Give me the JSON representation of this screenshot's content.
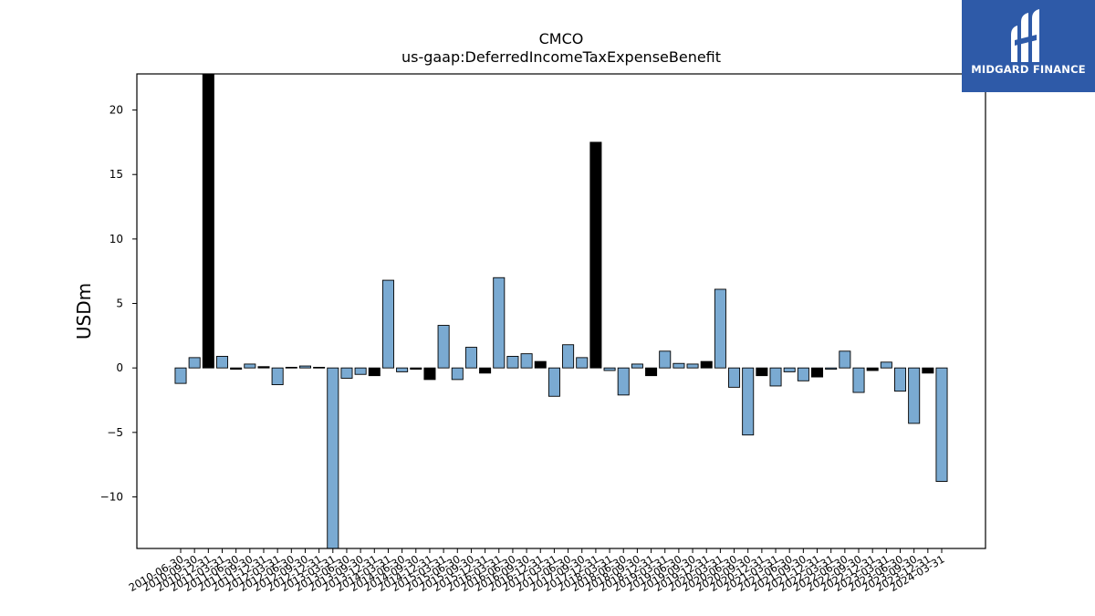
{
  "chart_data": {
    "type": "bar",
    "title": "CMCO",
    "subtitle": "us-gaap:DeferredIncomeTaxExpenseBenefit",
    "ylabel": "USDm",
    "xlabel": "",
    "ylim": [
      -14,
      22.8
    ],
    "yticks": [
      -10,
      -5,
      0,
      5,
      10,
      15,
      20
    ],
    "ytick_labels": [
      "−10",
      "−5",
      "0",
      "5",
      "10",
      "15",
      "20"
    ],
    "grid": false,
    "colors": {
      "normal": "#7aaad2",
      "highlight": "#000000",
      "edge": "#000000"
    },
    "bars": [
      {
        "x": "2010-06-30",
        "v": -1.2,
        "h": false
      },
      {
        "x": "2010-09-30",
        "v": 0.8,
        "h": false
      },
      {
        "x": "2010-12-31",
        "v": 22.8,
        "h": true
      },
      {
        "x": "2011-03-31",
        "v": 0.9,
        "h": false
      },
      {
        "x": "2011-06-30",
        "v": -0.1,
        "h": true
      },
      {
        "x": "2011-09-30",
        "v": 0.3,
        "h": false
      },
      {
        "x": "2011-12-31",
        "v": 0.1,
        "h": true
      },
      {
        "x": "2012-03-31",
        "v": -1.3,
        "h": false
      },
      {
        "x": "2012-06-30",
        "v": 0.05,
        "h": false
      },
      {
        "x": "2012-09-30",
        "v": 0.15,
        "h": false
      },
      {
        "x": "2012-12-31",
        "v": 0.05,
        "h": true
      },
      {
        "x": "2013-03-31",
        "v": -14.0,
        "h": false
      },
      {
        "x": "2013-06-30",
        "v": -0.8,
        "h": false
      },
      {
        "x": "2013-09-30",
        "v": -0.5,
        "h": false
      },
      {
        "x": "2013-12-31",
        "v": -0.6,
        "h": true
      },
      {
        "x": "2014-03-31",
        "v": 6.8,
        "h": false
      },
      {
        "x": "2014-06-30",
        "v": -0.3,
        "h": false
      },
      {
        "x": "2014-09-30",
        "v": -0.1,
        "h": true
      },
      {
        "x": "2014-12-31",
        "v": -0.9,
        "h": true
      },
      {
        "x": "2015-03-31",
        "v": 3.3,
        "h": false
      },
      {
        "x": "2015-06-30",
        "v": -0.9,
        "h": false
      },
      {
        "x": "2015-09-30",
        "v": 1.6,
        "h": false
      },
      {
        "x": "2015-12-31",
        "v": -0.4,
        "h": true
      },
      {
        "x": "2016-03-31",
        "v": 7.0,
        "h": false
      },
      {
        "x": "2016-06-30",
        "v": 0.9,
        "h": false
      },
      {
        "x": "2016-09-30",
        "v": 1.1,
        "h": false
      },
      {
        "x": "2016-12-31",
        "v": 0.5,
        "h": true
      },
      {
        "x": "2017-03-31",
        "v": -2.2,
        "h": false
      },
      {
        "x": "2017-06-30",
        "v": 1.8,
        "h": false
      },
      {
        "x": "2017-09-30",
        "v": 0.8,
        "h": false
      },
      {
        "x": "2017-12-31",
        "v": 17.5,
        "h": true
      },
      {
        "x": "2018-03-31",
        "v": -0.2,
        "h": false
      },
      {
        "x": "2018-06-30",
        "v": -2.1,
        "h": false
      },
      {
        "x": "2018-09-30",
        "v": 0.3,
        "h": false
      },
      {
        "x": "2018-12-31",
        "v": -0.6,
        "h": true
      },
      {
        "x": "2019-03-31",
        "v": 1.3,
        "h": false
      },
      {
        "x": "2019-06-30",
        "v": 0.35,
        "h": false
      },
      {
        "x": "2019-09-30",
        "v": 0.3,
        "h": false
      },
      {
        "x": "2019-12-31",
        "v": 0.5,
        "h": true
      },
      {
        "x": "2020-03-31",
        "v": 6.1,
        "h": false
      },
      {
        "x": "2020-06-30",
        "v": -1.5,
        "h": false
      },
      {
        "x": "2020-09-30",
        "v": -5.2,
        "h": false
      },
      {
        "x": "2020-12-31",
        "v": -0.6,
        "h": true
      },
      {
        "x": "2021-03-31",
        "v": -1.4,
        "h": false
      },
      {
        "x": "2021-06-30",
        "v": -0.3,
        "h": false
      },
      {
        "x": "2021-09-30",
        "v": -1.0,
        "h": false
      },
      {
        "x": "2021-12-31",
        "v": -0.7,
        "h": true
      },
      {
        "x": "2022-03-31",
        "v": -0.1,
        "h": false
      },
      {
        "x": "2022-06-30",
        "v": 1.3,
        "h": false
      },
      {
        "x": "2022-09-30",
        "v": -1.9,
        "h": false
      },
      {
        "x": "2022-12-31",
        "v": -0.2,
        "h": true
      },
      {
        "x": "2023-03-31",
        "v": 0.45,
        "h": false
      },
      {
        "x": "2023-06-30",
        "v": -1.8,
        "h": false
      },
      {
        "x": "2023-09-30",
        "v": -4.3,
        "h": false
      },
      {
        "x": "2023-12-31",
        "v": -0.4,
        "h": true
      },
      {
        "x": "2024-03-31",
        "v": -8.8,
        "h": false
      }
    ],
    "xtick_label_stride": 1
  },
  "logo": {
    "text": "MIDGARD FINANCE",
    "icon": "midgard-logo-icon"
  }
}
